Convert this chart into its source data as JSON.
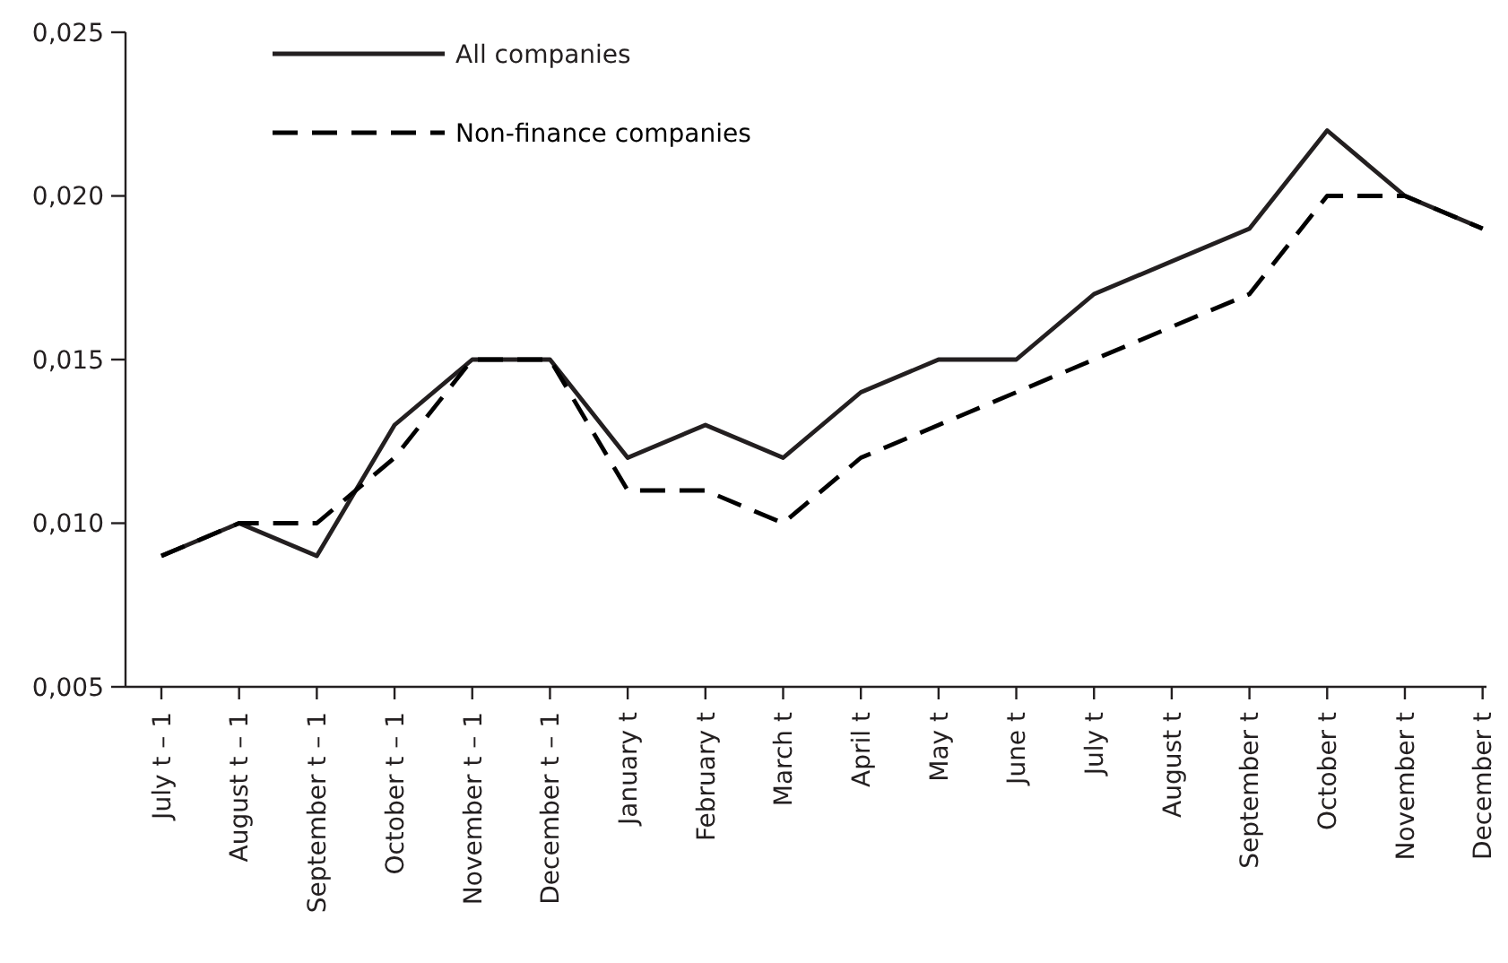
{
  "chart_data": {
    "type": "line",
    "categories": [
      "July t – 1",
      "August t – 1",
      "September  t – 1",
      "October t – 1",
      "November t – 1",
      "December t – 1",
      "January t",
      "February t",
      "March  t",
      "April t",
      "May t",
      "June  t",
      "July t",
      "August t",
      "September  t",
      "October t",
      "November t",
      "December t"
    ],
    "series": [
      {
        "name": "All companies",
        "color": "#231f20",
        "line_style": "solid",
        "values": [
          0.009,
          0.01,
          0.009,
          0.013,
          0.015,
          0.015,
          0.012,
          0.013,
          0.012,
          0.014,
          0.015,
          0.015,
          0.017,
          0.018,
          0.019,
          0.022,
          0.02,
          0.019
        ]
      },
      {
        "name": "Non-finance companies",
        "color": "#000000",
        "line_style": "dashed",
        "values": [
          0.009,
          0.01,
          0.01,
          0.012,
          0.015,
          0.015,
          0.011,
          0.011,
          0.01,
          0.012,
          0.013,
          0.014,
          0.015,
          0.016,
          0.017,
          0.02,
          0.02,
          0.019
        ]
      }
    ],
    "ylim": [
      0.005,
      0.025
    ],
    "yticks": [
      {
        "value": 0.005,
        "label": "0,005"
      },
      {
        "value": 0.01,
        "label": "0,010"
      },
      {
        "value": 0.015,
        "label": "0,015"
      },
      {
        "value": 0.02,
        "label": "0,020"
      },
      {
        "value": 0.025,
        "label": "0,025"
      }
    ],
    "grid": false,
    "legend": "top left",
    "marker": "none"
  }
}
